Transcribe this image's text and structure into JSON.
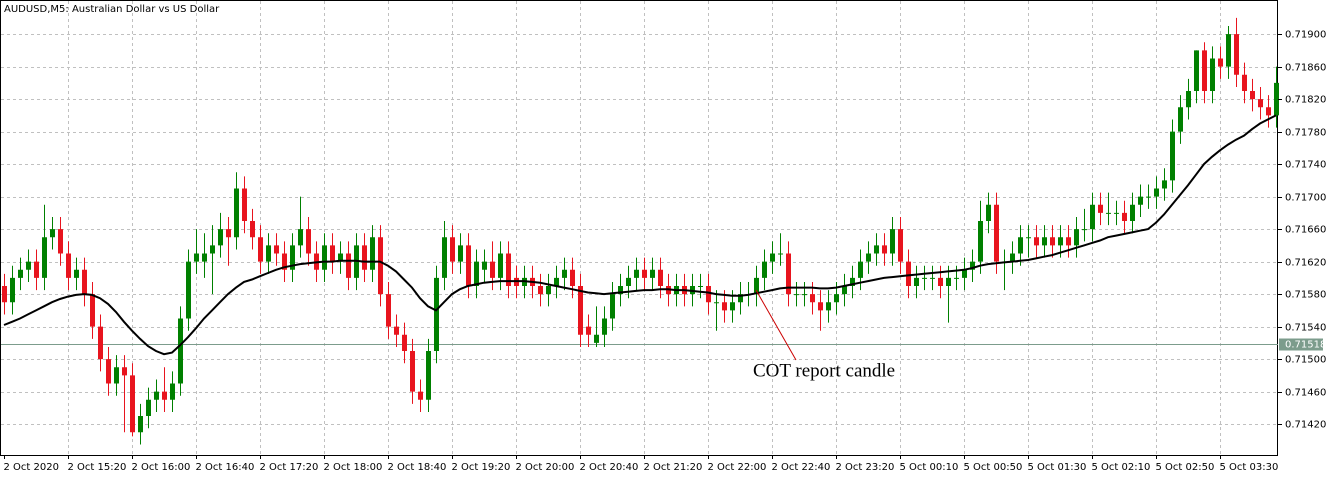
{
  "chart_data": {
    "type": "candlestick",
    "title": "AUDUSD,M5:  Australian Dollar vs US Dollar",
    "annotation": "COT report candle",
    "up_color": "#008000",
    "down_color": "#e8141e",
    "grid": true,
    "ylim": [
      0.71382,
      0.71942
    ],
    "yticks": [
      {
        "value": 0.719,
        "label": "0.71900"
      },
      {
        "value": 0.7186,
        "label": "0.71860"
      },
      {
        "value": 0.7182,
        "label": "0.71820"
      },
      {
        "value": 0.7178,
        "label": "0.71780"
      },
      {
        "value": 0.7174,
        "label": "0.71740"
      },
      {
        "value": 0.717,
        "label": "0.71700"
      },
      {
        "value": 0.7166,
        "label": "0.71660"
      },
      {
        "value": 0.7162,
        "label": "0.71620"
      },
      {
        "value": 0.7158,
        "label": "0.71580"
      },
      {
        "value": 0.7154,
        "label": "0.71540"
      },
      {
        "value": 0.715,
        "label": "0.71500"
      },
      {
        "value": 0.7146,
        "label": "0.71460"
      },
      {
        "value": 0.7142,
        "label": "0.71420"
      }
    ],
    "current_price": {
      "value": 0.71518,
      "label": "0.71518"
    },
    "categories": [
      "2 Oct 2020",
      null,
      null,
      null,
      null,
      null,
      null,
      null,
      "2 Oct 15:20",
      null,
      null,
      null,
      null,
      null,
      null,
      null,
      "2 Oct 16:00",
      null,
      null,
      null,
      null,
      null,
      null,
      null,
      "2 Oct 16:40",
      null,
      null,
      null,
      null,
      null,
      null,
      null,
      "2 Oct 17:20",
      null,
      null,
      null,
      null,
      null,
      null,
      null,
      "2 Oct 18:00",
      null,
      null,
      null,
      null,
      null,
      null,
      null,
      "2 Oct 18:40",
      null,
      null,
      null,
      null,
      null,
      null,
      null,
      "2 Oct 19:20",
      null,
      null,
      null,
      null,
      null,
      null,
      null,
      "2 Oct 20:00",
      null,
      null,
      null,
      null,
      null,
      null,
      null,
      "2 Oct 20:40",
      null,
      null,
      null,
      null,
      null,
      null,
      null,
      "2 Oct 21:20",
      null,
      null,
      null,
      null,
      null,
      null,
      null,
      "2 Oct 22:00",
      null,
      null,
      null,
      null,
      null,
      null,
      null,
      "2 Oct 22:40",
      null,
      null,
      null,
      null,
      null,
      null,
      null,
      "2 Oct 23:20",
      null,
      null,
      null,
      null,
      null,
      null,
      null,
      "5 Oct 00:10",
      null,
      null,
      null,
      null,
      null,
      null,
      null,
      "5 Oct 00:50",
      null,
      null,
      null,
      null,
      null,
      null,
      null,
      "5 Oct 01:30",
      null,
      null,
      null,
      null,
      null,
      null,
      null,
      "5 Oct 02:10",
      null,
      null,
      null,
      null,
      null,
      null,
      null,
      "5 Oct 02:50",
      null,
      null,
      null,
      null,
      null,
      null,
      null,
      "5 Oct 03:30",
      null,
      null,
      null,
      null,
      null,
      null,
      null
    ],
    "candles": [
      [
        0.7159,
        0.71605,
        0.71555,
        0.7157
      ],
      [
        0.7157,
        0.71615,
        0.71555,
        0.716
      ],
      [
        0.716,
        0.71625,
        0.71585,
        0.7161
      ],
      [
        0.7161,
        0.71635,
        0.71595,
        0.7162
      ],
      [
        0.7162,
        0.71635,
        0.71585,
        0.716
      ],
      [
        0.716,
        0.7169,
        0.71585,
        0.7165
      ],
      [
        0.7165,
        0.71675,
        0.71635,
        0.7166
      ],
      [
        0.7166,
        0.71675,
        0.71615,
        0.7163
      ],
      [
        0.7163,
        0.71645,
        0.71585,
        0.716
      ],
      [
        0.716,
        0.71625,
        0.71585,
        0.7161
      ],
      [
        0.7161,
        0.71625,
        0.71565,
        0.7158
      ],
      [
        0.7158,
        0.71595,
        0.71525,
        0.7154
      ],
      [
        0.7154,
        0.71555,
        0.71485,
        0.715
      ],
      [
        0.715,
        0.71515,
        0.71455,
        0.7147
      ],
      [
        0.7147,
        0.71505,
        0.71455,
        0.7149
      ],
      [
        0.7149,
        0.71505,
        0.7141,
        0.7148
      ],
      [
        0.7148,
        0.71495,
        0.71405,
        0.7141
      ],
      [
        0.7141,
        0.71445,
        0.71395,
        0.7143
      ],
      [
        0.7143,
        0.71465,
        0.71415,
        0.7145
      ],
      [
        0.7145,
        0.71475,
        0.71435,
        0.7146
      ],
      [
        0.7146,
        0.7149,
        0.71435,
        0.7145
      ],
      [
        0.7145,
        0.71485,
        0.71435,
        0.7147
      ],
      [
        0.7147,
        0.71565,
        0.71455,
        0.7155
      ],
      [
        0.7155,
        0.71635,
        0.71535,
        0.7162
      ],
      [
        0.7162,
        0.7166,
        0.71605,
        0.7163
      ],
      [
        0.7162,
        0.71655,
        0.716,
        0.7163
      ],
      [
        0.7163,
        0.71665,
        0.7158,
        0.7164
      ],
      [
        0.7164,
        0.7168,
        0.71625,
        0.7166
      ],
      [
        0.7166,
        0.71675,
        0.71615,
        0.7165
      ],
      [
        0.7165,
        0.7173,
        0.71635,
        0.7171
      ],
      [
        0.7171,
        0.71725,
        0.71655,
        0.7167
      ],
      [
        0.7167,
        0.71685,
        0.71635,
        0.7165
      ],
      [
        0.7165,
        0.71665,
        0.71605,
        0.7162
      ],
      [
        0.7162,
        0.71655,
        0.71605,
        0.7164
      ],
      [
        0.7164,
        0.71655,
        0.71615,
        0.7163
      ],
      [
        0.7163,
        0.71645,
        0.71595,
        0.7161
      ],
      [
        0.7161,
        0.71655,
        0.71595,
        0.7164
      ],
      [
        0.7164,
        0.717,
        0.71625,
        0.7166
      ],
      [
        0.7166,
        0.71675,
        0.71615,
        0.7163
      ],
      [
        0.7163,
        0.71645,
        0.71595,
        0.7161
      ],
      [
        0.7161,
        0.71655,
        0.71595,
        0.7164
      ],
      [
        0.7164,
        0.71655,
        0.71605,
        0.7162
      ],
      [
        0.7162,
        0.71645,
        0.71605,
        0.7163
      ],
      [
        0.7163,
        0.71645,
        0.71585,
        0.716
      ],
      [
        0.716,
        0.71655,
        0.71585,
        0.7164
      ],
      [
        0.7164,
        0.71655,
        0.71595,
        0.7161
      ],
      [
        0.7161,
        0.71665,
        0.71595,
        0.7165
      ],
      [
        0.7165,
        0.71665,
        0.71565,
        0.7158
      ],
      [
        0.7158,
        0.71595,
        0.71525,
        0.7154
      ],
      [
        0.7154,
        0.71555,
        0.71515,
        0.7153
      ],
      [
        0.7153,
        0.71545,
        0.71495,
        0.7151
      ],
      [
        0.7151,
        0.71525,
        0.71445,
        0.7146
      ],
      [
        0.7146,
        0.71475,
        0.71435,
        0.7145
      ],
      [
        0.7145,
        0.71525,
        0.71435,
        0.7151
      ],
      [
        0.7151,
        0.71615,
        0.71495,
        0.716
      ],
      [
        0.716,
        0.7167,
        0.71585,
        0.7165
      ],
      [
        0.7165,
        0.71665,
        0.71605,
        0.7162
      ],
      [
        0.7162,
        0.71655,
        0.71605,
        0.7164
      ],
      [
        0.7164,
        0.71655,
        0.71575,
        0.7159
      ],
      [
        0.7159,
        0.71635,
        0.71575,
        0.7162
      ],
      [
        0.7161,
        0.71635,
        0.71595,
        0.7162
      ],
      [
        0.7162,
        0.71645,
        0.71585,
        0.716
      ],
      [
        0.716,
        0.71645,
        0.71585,
        0.7163
      ],
      [
        0.7163,
        0.71645,
        0.71575,
        0.7159
      ],
      [
        0.716,
        0.71615,
        0.71575,
        0.7159
      ],
      [
        0.7159,
        0.71615,
        0.71575,
        0.716
      ],
      [
        0.716,
        0.71615,
        0.71575,
        0.7159
      ],
      [
        0.7159,
        0.71605,
        0.71565,
        0.7158
      ],
      [
        0.7158,
        0.71605,
        0.71565,
        0.7159
      ],
      [
        0.7159,
        0.71615,
        0.71575,
        0.716
      ],
      [
        0.716,
        0.71625,
        0.71585,
        0.7161
      ],
      [
        0.7161,
        0.71625,
        0.71575,
        0.7159
      ],
      [
        0.7159,
        0.71605,
        0.71515,
        0.7153
      ],
      [
        0.7154,
        0.71555,
        0.71515,
        0.7153
      ],
      [
        0.7152,
        0.71565,
        0.71515,
        0.7153
      ],
      [
        0.7153,
        0.71565,
        0.71515,
        0.7155
      ],
      [
        0.7155,
        0.71595,
        0.71535,
        0.7158
      ],
      [
        0.7158,
        0.71605,
        0.71565,
        0.7159
      ],
      [
        0.7159,
        0.71615,
        0.71575,
        0.716
      ],
      [
        0.716,
        0.71625,
        0.71585,
        0.7161
      ],
      [
        0.7161,
        0.71625,
        0.71585,
        0.716
      ],
      [
        0.716,
        0.71625,
        0.71585,
        0.7161
      ],
      [
        0.7161,
        0.71625,
        0.71575,
        0.7159
      ],
      [
        0.7159,
        0.71605,
        0.71565,
        0.7158
      ],
      [
        0.7158,
        0.71605,
        0.71565,
        0.7159
      ],
      [
        0.7159,
        0.71605,
        0.71565,
        0.7158
      ],
      [
        0.7158,
        0.71605,
        0.71565,
        0.7159
      ],
      [
        0.7159,
        0.71605,
        0.71575,
        0.7159
      ],
      [
        0.7159,
        0.71605,
        0.71555,
        0.7157
      ],
      [
        0.7157,
        0.71585,
        0.71535,
        0.7157
      ],
      [
        0.7157,
        0.71585,
        0.71545,
        0.7156
      ],
      [
        0.7156,
        0.71585,
        0.71545,
        0.7157
      ],
      [
        0.7157,
        0.71595,
        0.71555,
        0.7158
      ],
      [
        0.7158,
        0.71595,
        0.71565,
        0.7158
      ],
      [
        0.7158,
        0.71615,
        0.71565,
        0.716
      ],
      [
        0.716,
        0.71635,
        0.71585,
        0.7162
      ],
      [
        0.7162,
        0.71645,
        0.71605,
        0.7163
      ],
      [
        0.7163,
        0.71655,
        0.71615,
        0.7163
      ],
      [
        0.7163,
        0.71645,
        0.71565,
        0.7158
      ],
      [
        0.7158,
        0.71595,
        0.71565,
        0.7158
      ],
      [
        0.7158,
        0.71595,
        0.71565,
        0.7158
      ],
      [
        0.7158,
        0.71595,
        0.71555,
        0.7157
      ],
      [
        0.7157,
        0.71585,
        0.71535,
        0.7156
      ],
      [
        0.7156,
        0.71585,
        0.71545,
        0.7157
      ],
      [
        0.7157,
        0.71595,
        0.71555,
        0.7158
      ],
      [
        0.7158,
        0.71605,
        0.71565,
        0.7159
      ],
      [
        0.7159,
        0.71615,
        0.71575,
        0.716
      ],
      [
        0.716,
        0.71635,
        0.71585,
        0.7162
      ],
      [
        0.7162,
        0.71645,
        0.71605,
        0.7163
      ],
      [
        0.7163,
        0.71655,
        0.71615,
        0.7164
      ],
      [
        0.7164,
        0.71655,
        0.71615,
        0.7163
      ],
      [
        0.7163,
        0.71675,
        0.71615,
        0.7166
      ],
      [
        0.7166,
        0.71675,
        0.71605,
        0.7162
      ],
      [
        0.7162,
        0.71635,
        0.71575,
        0.7159
      ],
      [
        0.7159,
        0.71615,
        0.71575,
        0.716
      ],
      [
        0.716,
        0.71615,
        0.71585,
        0.716
      ],
      [
        0.716,
        0.71615,
        0.71585,
        0.716
      ],
      [
        0.716,
        0.71615,
        0.71575,
        0.7159
      ],
      [
        0.7159,
        0.71615,
        0.71545,
        0.716
      ],
      [
        0.716,
        0.71615,
        0.71585,
        0.716
      ],
      [
        0.716,
        0.71625,
        0.71585,
        0.7161
      ],
      [
        0.7161,
        0.71635,
        0.71595,
        0.7162
      ],
      [
        0.7162,
        0.71695,
        0.71605,
        0.7167
      ],
      [
        0.7167,
        0.71705,
        0.71655,
        0.7169
      ],
      [
        0.7169,
        0.71705,
        0.71605,
        0.7162
      ],
      [
        0.7162,
        0.71635,
        0.71585,
        0.7162
      ],
      [
        0.7162,
        0.71645,
        0.71605,
        0.7163
      ],
      [
        0.7163,
        0.71665,
        0.71615,
        0.7165
      ],
      [
        0.7165,
        0.71665,
        0.71625,
        0.7165
      ],
      [
        0.7165,
        0.71665,
        0.71625,
        0.7164
      ],
      [
        0.7164,
        0.71665,
        0.71625,
        0.7165
      ],
      [
        0.7165,
        0.71665,
        0.71625,
        0.7164
      ],
      [
        0.7164,
        0.71665,
        0.71625,
        0.7165
      ],
      [
        0.7165,
        0.71665,
        0.71625,
        0.7164
      ],
      [
        0.7164,
        0.71675,
        0.71625,
        0.7166
      ],
      [
        0.7166,
        0.71685,
        0.71645,
        0.7166
      ],
      [
        0.7166,
        0.71705,
        0.71645,
        0.7169
      ],
      [
        0.7169,
        0.71705,
        0.71665,
        0.7168
      ],
      [
        0.7168,
        0.71705,
        0.71665,
        0.7168
      ],
      [
        0.7168,
        0.71695,
        0.71665,
        0.7168
      ],
      [
        0.7168,
        0.71695,
        0.71655,
        0.7167
      ],
      [
        0.7167,
        0.71705,
        0.71655,
        0.7169
      ],
      [
        0.7169,
        0.71715,
        0.71675,
        0.717
      ],
      [
        0.717,
        0.71715,
        0.71685,
        0.717
      ],
      [
        0.717,
        0.71725,
        0.71685,
        0.7171
      ],
      [
        0.7171,
        0.71735,
        0.71695,
        0.7172
      ],
      [
        0.7172,
        0.71795,
        0.71705,
        0.7178
      ],
      [
        0.7178,
        0.71825,
        0.71765,
        0.7181
      ],
      [
        0.7181,
        0.71845,
        0.71795,
        0.7183
      ],
      [
        0.7183,
        0.7188,
        0.71815,
        0.7188
      ],
      [
        0.7188,
        0.7189,
        0.71815,
        0.7183
      ],
      [
        0.7183,
        0.71885,
        0.71815,
        0.7187
      ],
      [
        0.7187,
        0.71885,
        0.71845,
        0.7186
      ],
      [
        0.7186,
        0.7191,
        0.71845,
        0.719
      ],
      [
        0.719,
        0.7192,
        0.71835,
        0.7185
      ],
      [
        0.7185,
        0.71865,
        0.71815,
        0.7183
      ],
      [
        0.7183,
        0.71845,
        0.71805,
        0.7182
      ],
      [
        0.7182,
        0.71835,
        0.71795,
        0.7181
      ],
      [
        0.7181,
        0.71825,
        0.71785,
        0.718
      ],
      [
        0.718,
        0.7186,
        0.71785,
        0.7184
      ]
    ],
    "line": {
      "color": "#000000",
      "values": [
        0.71542,
        0.71546,
        0.7155,
        0.71555,
        0.7156,
        0.71565,
        0.7157,
        0.71574,
        0.71577,
        0.71579,
        0.7158,
        0.71579,
        0.71575,
        0.71568,
        0.71558,
        0.71546,
        0.71535,
        0.71525,
        0.71516,
        0.7151,
        0.71506,
        0.71508,
        0.71517,
        0.71527,
        0.71538,
        0.7155,
        0.7156,
        0.7157,
        0.7158,
        0.71588,
        0.71595,
        0.71598,
        0.71602,
        0.71606,
        0.7161,
        0.71613,
        0.71615,
        0.71617,
        0.71618,
        0.71619,
        0.7162,
        0.7162,
        0.71621,
        0.71621,
        0.71621,
        0.7162,
        0.7162,
        0.7162,
        0.71615,
        0.71608,
        0.71598,
        0.71588,
        0.71575,
        0.71565,
        0.7156,
        0.7157,
        0.7158,
        0.71586,
        0.7159,
        0.71592,
        0.71594,
        0.71595,
        0.71596,
        0.71596,
        0.71596,
        0.71596,
        0.71595,
        0.71594,
        0.71592,
        0.7159,
        0.71588,
        0.71586,
        0.71584,
        0.71582,
        0.71581,
        0.7158,
        0.71581,
        0.71582,
        0.71583,
        0.71584,
        0.71585,
        0.71585,
        0.71586,
        0.71586,
        0.71585,
        0.71585,
        0.71584,
        0.71583,
        0.71582,
        0.7158,
        0.71579,
        0.71578,
        0.71578,
        0.71579,
        0.71581,
        0.71583,
        0.71585,
        0.71587,
        0.71588,
        0.71588,
        0.71588,
        0.71588,
        0.71587,
        0.71587,
        0.71588,
        0.7159,
        0.71592,
        0.71594,
        0.71596,
        0.71598,
        0.716,
        0.71601,
        0.71602,
        0.71603,
        0.71604,
        0.71605,
        0.71606,
        0.71607,
        0.71608,
        0.71609,
        0.7161,
        0.71612,
        0.71615,
        0.71617,
        0.71618,
        0.71619,
        0.7162,
        0.71621,
        0.71622,
        0.71624,
        0.71626,
        0.71628,
        0.71631,
        0.71634,
        0.71637,
        0.7164,
        0.71643,
        0.71646,
        0.7165,
        0.71652,
        0.71654,
        0.71656,
        0.71658,
        0.7166,
        0.71668,
        0.71678,
        0.7169,
        0.71702,
        0.71714,
        0.71727,
        0.7174,
        0.71749,
        0.71757,
        0.71764,
        0.7177,
        0.71775,
        0.71783,
        0.7179,
        0.71795,
        0.718
      ]
    }
  }
}
